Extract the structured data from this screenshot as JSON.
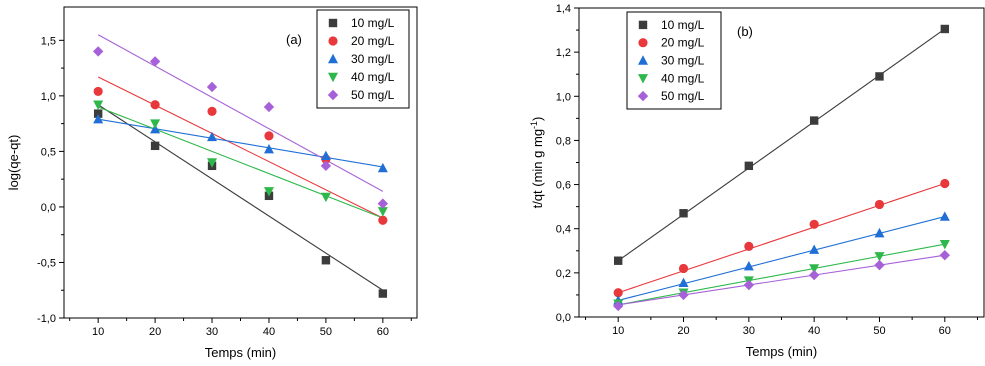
{
  "chart_data": [
    {
      "type": "scatter",
      "panel_label": "(a)",
      "xlabel": "Temps (min)",
      "ylabel": "log(qe-qt)",
      "xlim": [
        4,
        66
      ],
      "ylim": [
        -1.0,
        1.8
      ],
      "x_ticks": [
        10,
        20,
        30,
        40,
        50,
        60
      ],
      "y_ticks": [
        -1.0,
        -0.5,
        0.0,
        0.5,
        1.0,
        1.5
      ],
      "y_tick_labels": [
        "-1,0",
        "-0,5",
        "0,0",
        "0,5",
        "1,0",
        "1,5"
      ],
      "x": [
        10,
        20,
        30,
        40,
        50,
        60
      ],
      "legend_position": "top-right",
      "series": [
        {
          "name": "10 mg/L",
          "color": "#3c3c3c",
          "marker": "square",
          "values": [
            0.84,
            0.55,
            0.37,
            0.1,
            -0.48,
            -0.78
          ],
          "fit": [
            0.92,
            -0.75
          ]
        },
        {
          "name": "20 mg/L",
          "color": "#e8383b",
          "marker": "circle",
          "values": [
            1.04,
            0.92,
            0.86,
            0.64,
            0.43,
            -0.12
          ],
          "fit": [
            1.17,
            -0.1
          ]
        },
        {
          "name": "30 mg/L",
          "color": "#1f6fd6",
          "marker": "triangle-up",
          "values": [
            0.79,
            0.7,
            0.63,
            0.52,
            0.46,
            0.35
          ],
          "fit": [
            0.79,
            0.36
          ]
        },
        {
          "name": "40 mg/L",
          "color": "#2eb84b",
          "marker": "triangle-down",
          "values": [
            0.92,
            0.75,
            0.4,
            0.14,
            0.09,
            -0.04
          ],
          "fit": [
            0.9,
            -0.1
          ]
        },
        {
          "name": "50 mg/L",
          "color": "#a661d8",
          "marker": "diamond",
          "values": [
            1.4,
            1.31,
            1.08,
            0.9,
            0.37,
            0.03
          ],
          "fit": [
            1.55,
            0.14
          ]
        }
      ]
    },
    {
      "type": "scatter",
      "panel_label": "(b)",
      "xlabel": "Temps (min)",
      "ylabel": "t/qt (min g mg",
      "ylabel_sup": "-1",
      "ylabel_end": ")",
      "xlim": [
        4,
        66
      ],
      "ylim": [
        0.0,
        1.4
      ],
      "x_ticks": [
        10,
        20,
        30,
        40,
        50,
        60
      ],
      "y_ticks": [
        0.0,
        0.2,
        0.4,
        0.6,
        0.8,
        1.0,
        1.2,
        1.4
      ],
      "y_tick_labels": [
        "0,0",
        "0,2",
        "0,4",
        "0,6",
        "0,8",
        "1,0",
        "1,2",
        "1,4"
      ],
      "x": [
        10,
        20,
        30,
        40,
        50,
        60
      ],
      "legend_position": "top-left",
      "series": [
        {
          "name": "10 mg/L",
          "color": "#3c3c3c",
          "marker": "square",
          "values": [
            0.255,
            0.47,
            0.685,
            0.89,
            1.09,
            1.305
          ],
          "fit": [
            0.255,
            1.305
          ]
        },
        {
          "name": "20 mg/L",
          "color": "#e8383b",
          "marker": "circle",
          "values": [
            0.11,
            0.22,
            0.32,
            0.42,
            0.51,
            0.605
          ],
          "fit": [
            0.11,
            0.605
          ]
        },
        {
          "name": "30 mg/L",
          "color": "#1f6fd6",
          "marker": "triangle-up",
          "values": [
            0.075,
            0.155,
            0.23,
            0.305,
            0.38,
            0.455
          ],
          "fit": [
            0.075,
            0.455
          ]
        },
        {
          "name": "40 mg/L",
          "color": "#2eb84b",
          "marker": "triangle-down",
          "values": [
            0.06,
            0.11,
            0.165,
            0.22,
            0.275,
            0.33
          ],
          "fit": [
            0.055,
            0.33
          ]
        },
        {
          "name": "50 mg/L",
          "color": "#a661d8",
          "marker": "diamond",
          "values": [
            0.05,
            0.1,
            0.145,
            0.19,
            0.235,
            0.28
          ],
          "fit": [
            0.055,
            0.28
          ]
        }
      ]
    }
  ]
}
